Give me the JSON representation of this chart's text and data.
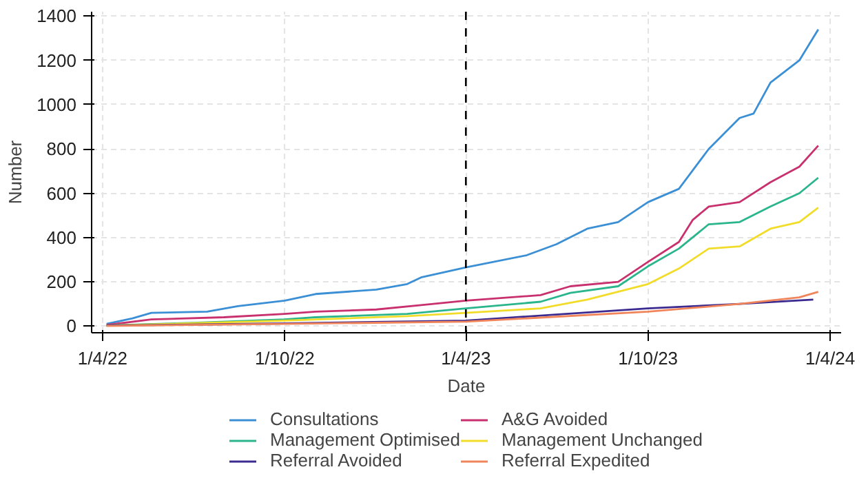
{
  "chart_data": {
    "type": "line",
    "xlabel": "Date",
    "ylabel": "Number",
    "xlim": [
      "2022-03-21",
      "2024-04-12"
    ],
    "xticks": [
      {
        "value": "2022-04-01",
        "label": "1/4/22"
      },
      {
        "value": "2022-10-01",
        "label": "1/10/22"
      },
      {
        "value": "2023-04-01",
        "label": "1/4/23"
      },
      {
        "value": "2023-10-01",
        "label": "1/10/23"
      },
      {
        "value": "2024-04-01",
        "label": "1/4/24"
      }
    ],
    "ylim": [
      -30,
      1420
    ],
    "yticks": [
      0,
      200,
      400,
      600,
      800,
      1000,
      1200,
      1400
    ],
    "grid": true,
    "legend": "bottom",
    "line_style": "solid",
    "marker": "none",
    "ref_lines": [
      {
        "axis": "x",
        "value": "2023-04-01",
        "color": "#000000",
        "line_style": "dashed"
      }
    ],
    "series": [
      {
        "name": "Consultations",
        "color": "#3b8fd4",
        "x": [
          "2022-04-05",
          "2022-05-01",
          "2022-05-20",
          "2022-07-15",
          "2022-08-15",
          "2022-10-01",
          "2022-11-01",
          "2023-01-01",
          "2023-02-01",
          "2023-02-15",
          "2023-04-01",
          "2023-06-01",
          "2023-07-01",
          "2023-08-01",
          "2023-09-01",
          "2023-10-01",
          "2023-11-01",
          "2023-12-01",
          "2024-01-01",
          "2024-01-15",
          "2024-02-01",
          "2024-03-01",
          "2024-03-20"
        ],
        "values": [
          10,
          35,
          60,
          65,
          90,
          115,
          145,
          165,
          190,
          220,
          265,
          320,
          370,
          440,
          470,
          560,
          620,
          800,
          940,
          960,
          1100,
          1200,
          1340
        ]
      },
      {
        "name": "A&G Avoided",
        "color": "#c8306e",
        "x": [
          "2022-04-05",
          "2022-05-20",
          "2022-08-01",
          "2022-10-01",
          "2022-11-01",
          "2023-01-01",
          "2023-02-15",
          "2023-04-01",
          "2023-06-15",
          "2023-07-15",
          "2023-09-01",
          "2023-10-01",
          "2023-11-01",
          "2023-11-15",
          "2023-12-01",
          "2024-01-01",
          "2024-02-01",
          "2024-03-01",
          "2024-03-20"
        ],
        "values": [
          5,
          30,
          40,
          55,
          65,
          75,
          95,
          115,
          140,
          180,
          200,
          290,
          380,
          480,
          540,
          560,
          650,
          720,
          815
        ]
      },
      {
        "name": "Management Optimised",
        "color": "#2bb58c",
        "x": [
          "2022-04-05",
          "2022-07-01",
          "2022-10-01",
          "2022-11-01",
          "2023-02-01",
          "2023-04-01",
          "2023-06-15",
          "2023-07-15",
          "2023-09-01",
          "2023-10-01",
          "2023-11-01",
          "2023-12-01",
          "2024-01-01",
          "2024-02-01",
          "2024-03-01",
          "2024-03-20"
        ],
        "values": [
          3,
          15,
          30,
          40,
          55,
          80,
          110,
          150,
          180,
          270,
          350,
          460,
          470,
          540,
          600,
          670
        ]
      },
      {
        "name": "Management Unchanged",
        "color": "#f2dc2a",
        "x": [
          "2022-04-05",
          "2022-10-01",
          "2023-02-01",
          "2023-04-01",
          "2023-06-15",
          "2023-08-01",
          "2023-10-01",
          "2023-11-01",
          "2023-12-01",
          "2024-01-01",
          "2024-02-01",
          "2024-03-01",
          "2024-03-20"
        ],
        "values": [
          2,
          25,
          45,
          60,
          80,
          120,
          190,
          260,
          350,
          360,
          440,
          470,
          535
        ]
      },
      {
        "name": "Referral Avoided",
        "color": "#3b2a8f",
        "x": [
          "2022-04-05",
          "2022-10-01",
          "2023-04-01",
          "2023-10-01",
          "2024-01-01",
          "2024-03-15"
        ],
        "values": [
          2,
          12,
          25,
          80,
          100,
          120
        ]
      },
      {
        "name": "Referral Expedited",
        "color": "#f0845a",
        "x": [
          "2022-04-05",
          "2022-10-01",
          "2023-04-01",
          "2023-10-01",
          "2024-01-01",
          "2024-03-01",
          "2024-03-20"
        ],
        "values": [
          1,
          10,
          20,
          65,
          100,
          130,
          155
        ]
      }
    ]
  }
}
